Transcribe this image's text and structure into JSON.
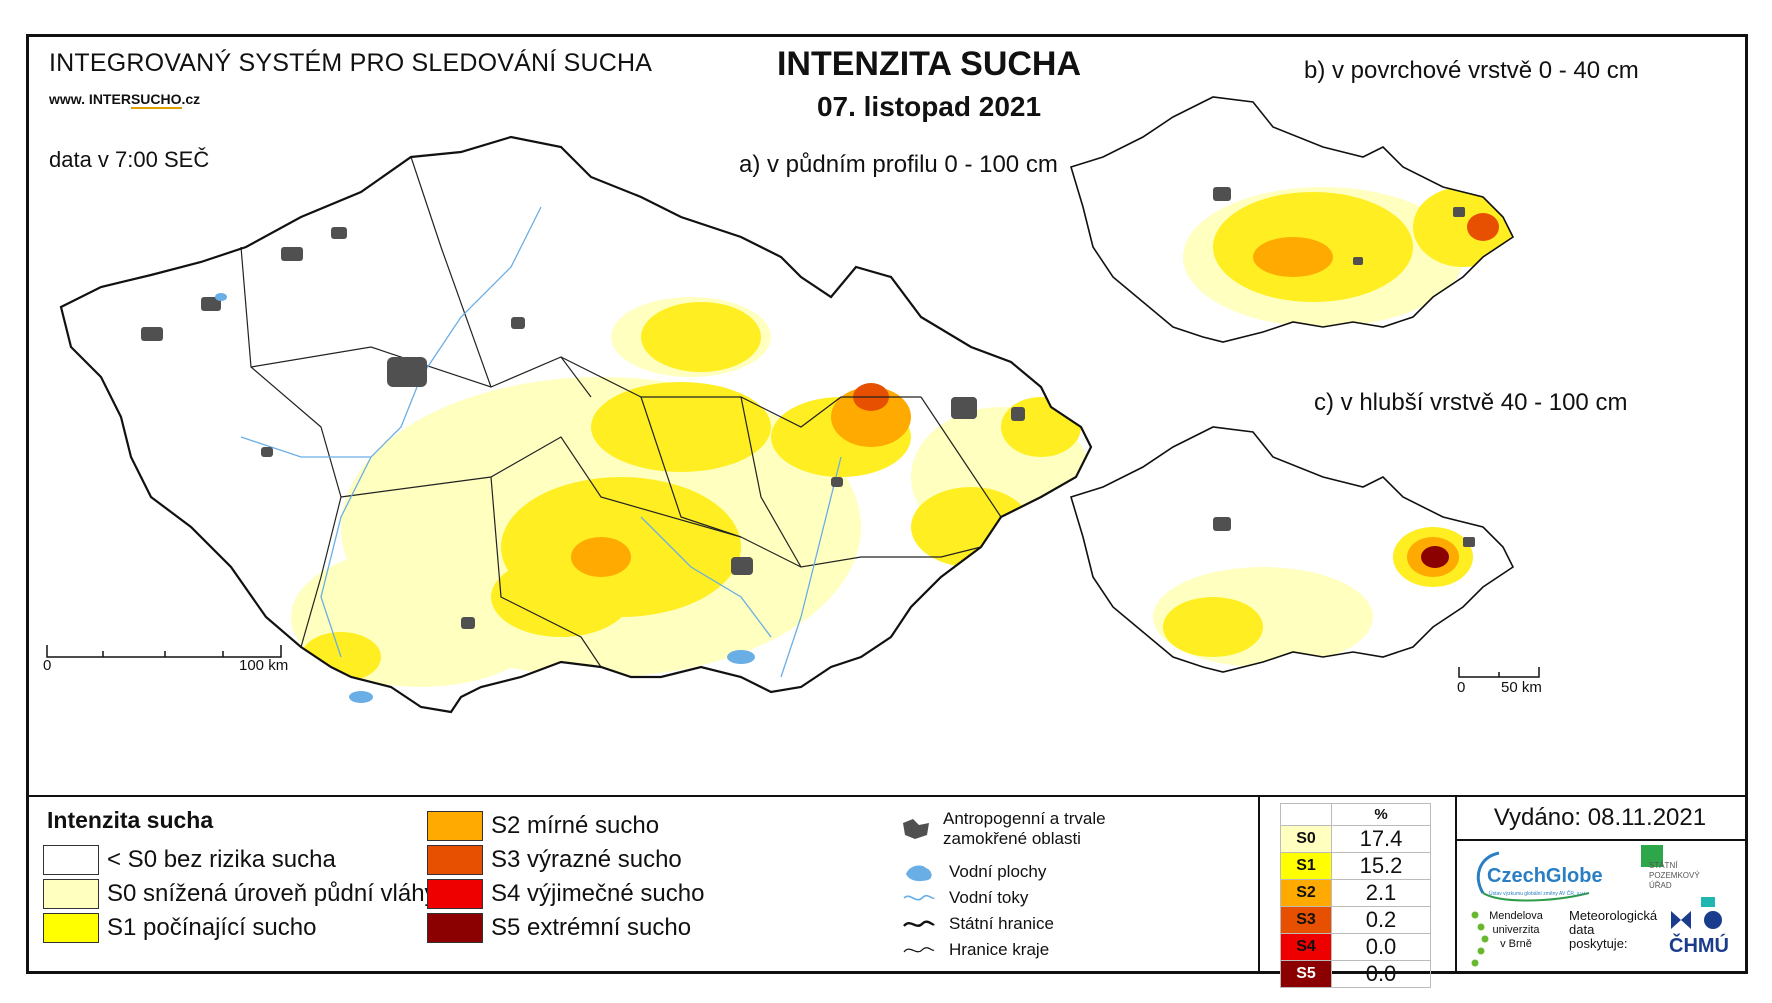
{
  "header": {
    "system_title": "INTEGROVANÝ SYSTÉM PRO SLEDOVÁNÍ SUCHA",
    "website_prefix": "www. INTER",
    "website_highlight": "SUCHO",
    "website_suffix": ".cz",
    "data_time": "data v 7:00 SEČ",
    "main_title": "INTENZITA SUCHA",
    "date": "07. listopad 2021"
  },
  "maps": {
    "a_label": "a) v půdním profilu 0 - 100 cm",
    "b_label": "b) v povrchové vrstvě 0 - 40 cm",
    "c_label": "c) v hlubší vrstvě 40 - 100 cm",
    "scale_main_start": "0",
    "scale_main_end": "100 km",
    "scale_small_start": "0",
    "scale_small_end": "50 km"
  },
  "legend": {
    "title": "Intenzita sucha",
    "classes": [
      {
        "label": "< S0 bez rizika sucha",
        "color": "#ffffff"
      },
      {
        "label": "S0 snížená úroveň půdní vláhy",
        "color": "#ffffc0"
      },
      {
        "label": "S1 počínající sucho",
        "color": "#ffff00"
      },
      {
        "label": "S2 mírné sucho",
        "color": "#ffaa00"
      },
      {
        "label": "S3 výrazné sucho",
        "color": "#e65000"
      },
      {
        "label": "S4 výjimečné sucho",
        "color": "#ee0000"
      },
      {
        "label": "S5 extrémní sucho",
        "color": "#8b0000"
      }
    ],
    "symbols": [
      {
        "label": "Antropogenní a trvale zamokřené oblasti",
        "icon": "urban-area-icon"
      },
      {
        "label": "Vodní plochy",
        "icon": "water-body-icon"
      },
      {
        "label": "Vodní toky",
        "icon": "river-icon"
      },
      {
        "label": "Státní hranice",
        "icon": "state-border-icon"
      },
      {
        "label": "Hranice kraje",
        "icon": "region-border-icon"
      }
    ]
  },
  "percent_table": {
    "header": "%",
    "rows": [
      {
        "code": "S0",
        "value": "17.4",
        "color": "#ffffc0"
      },
      {
        "code": "S1",
        "value": "15.2",
        "color": "#ffff00"
      },
      {
        "code": "S2",
        "value": "2.1",
        "color": "#ffaa00"
      },
      {
        "code": "S3",
        "value": "0.2",
        "color": "#e65000"
      },
      {
        "code": "S4",
        "value": "0.0",
        "color": "#ee0000"
      },
      {
        "code": "S5",
        "value": "0.0",
        "color": "#8b0000"
      }
    ]
  },
  "footer": {
    "issued": "Vydáno: 08.11.2021",
    "czechglobe": "CzechGlobe",
    "czechglobe_sub": "Ústav výzkumu globální změny AV ČR, v.v.i.",
    "spu_lines": [
      "STÁTNÍ",
      "POZEMKOVÝ",
      "ÚŘAD"
    ],
    "mendel_lines": [
      "Mendelova",
      "univerzita",
      "v Brně"
    ],
    "met_lines": [
      "Meteorologická",
      "data",
      "poskytuje:"
    ],
    "chmu": "ČHMÚ"
  },
  "colors": {
    "urban": "#505050",
    "water": "#6aaee6",
    "border": "#222222"
  }
}
